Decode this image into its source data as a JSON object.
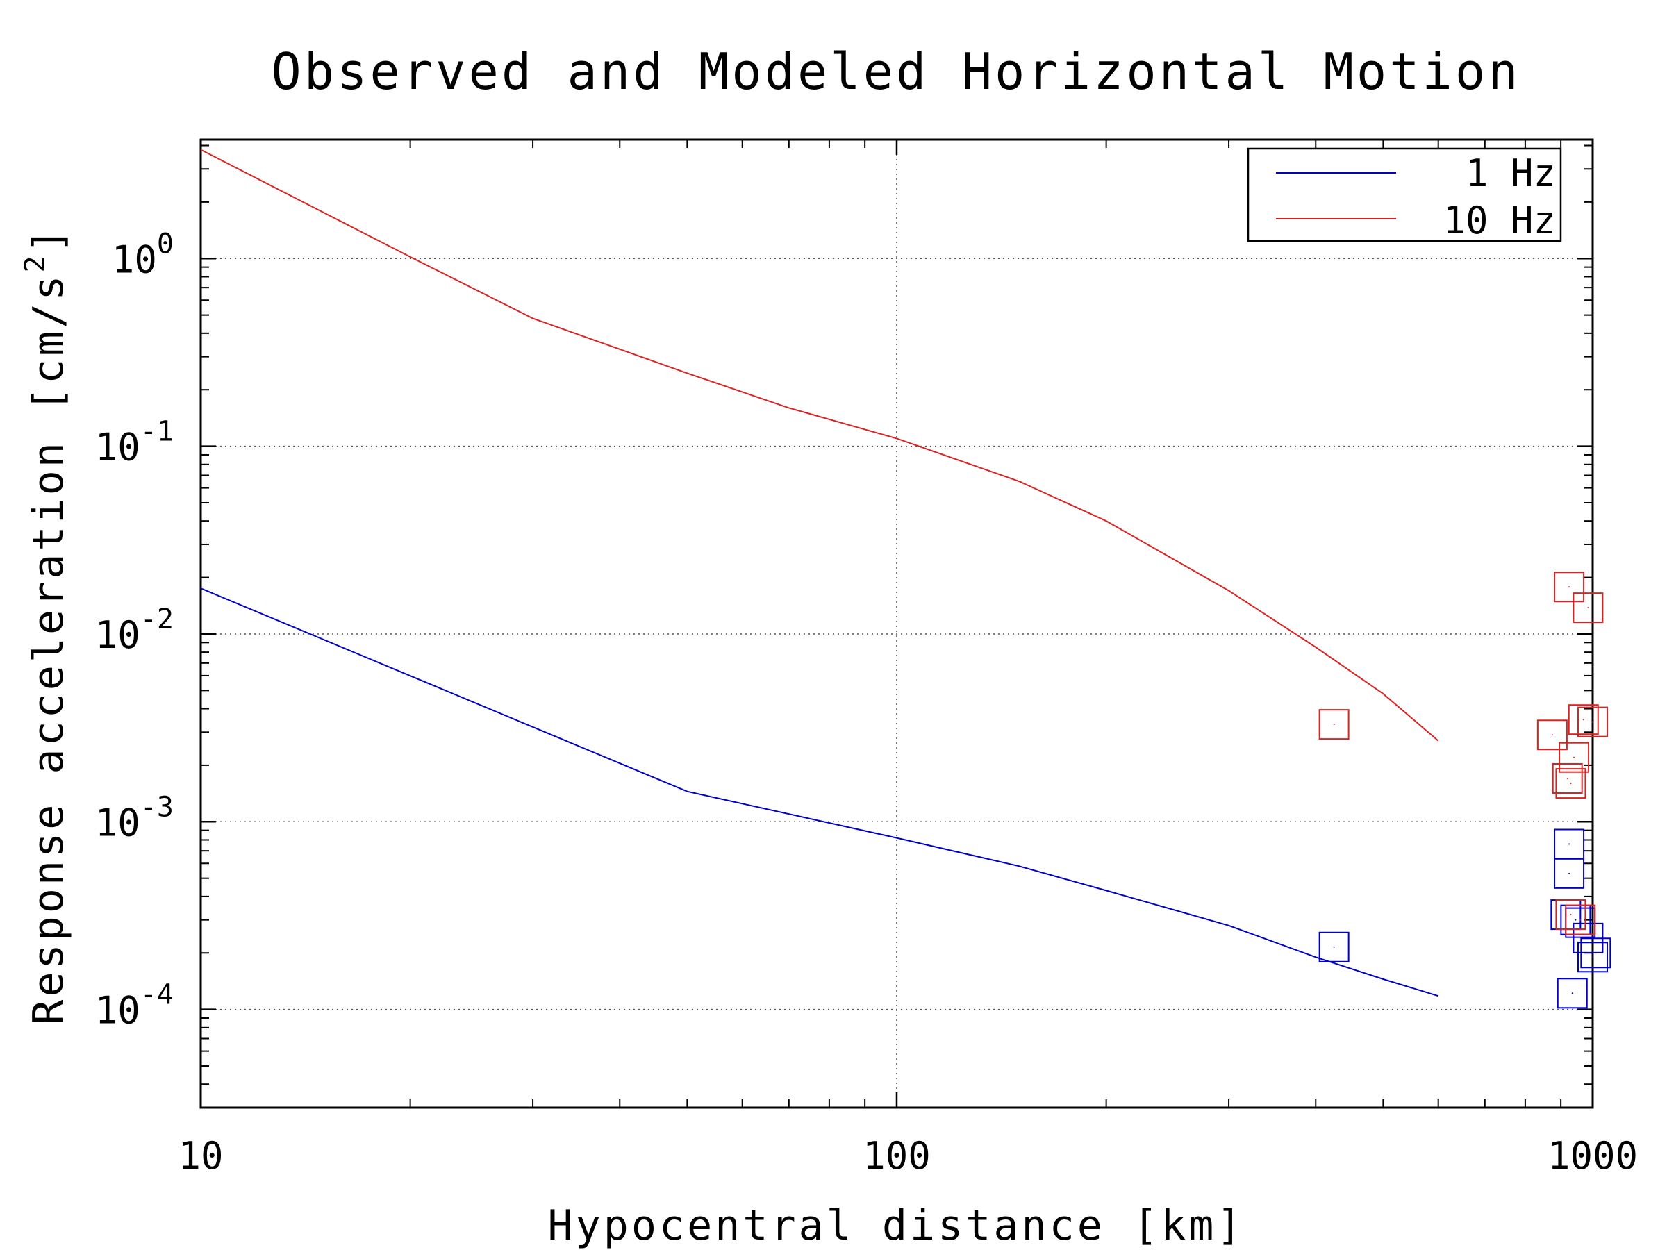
{
  "chart_data": {
    "type": "scatter",
    "title": "Observed and Modeled Horizontal Motion",
    "xlabel": "Hypocentral distance [km]",
    "ylabel": "Response acceleration [cm/s",
    "ylabel_sup": "2",
    "ylabel_end": "]",
    "x_scale": "log",
    "y_scale": "log",
    "xlim": [
      10,
      1000
    ],
    "ylim": [
      3e-05,
      4.3
    ],
    "grid": true,
    "legend_position": "top-right",
    "x_ticks": [
      {
        "value": 10,
        "label": "10"
      },
      {
        "value": 100,
        "label": "100"
      },
      {
        "value": 1000,
        "label": "1000"
      }
    ],
    "y_ticks": [
      {
        "value": 1,
        "base": "10",
        "exp": "0"
      },
      {
        "value": 0.1,
        "base": "10",
        "exp": "-1"
      },
      {
        "value": 0.01,
        "base": "10",
        "exp": "-2"
      },
      {
        "value": 0.001,
        "base": "10",
        "exp": "-3"
      },
      {
        "value": 0.0001,
        "base": "10",
        "exp": "-4"
      }
    ],
    "series": [
      {
        "name": "1 Hz",
        "color": "#0000cc",
        "line": {
          "x": [
            10,
            50,
            100,
            150,
            200,
            300,
            400,
            500,
            600
          ],
          "y": [
            0.0175,
            0.00145,
            0.00082,
            0.00058,
            0.00043,
            0.00028,
            0.00019,
            0.000145,
            0.000118
          ]
        },
        "points": {
          "x": [
            425,
            925,
            925,
            915,
            945,
            960,
            985,
            1010,
            1000,
            935
          ],
          "y": [
            0.000215,
            0.00076,
            0.00053,
            0.00032,
            0.0003,
            0.00029,
            0.00024,
            0.0002,
            0.00019,
            0.000122
          ]
        }
      },
      {
        "name": "10 Hz",
        "color": "#dd2222",
        "line": {
          "x": [
            10,
            20,
            30,
            50,
            70,
            100,
            150,
            200,
            300,
            400,
            500,
            600
          ],
          "y": [
            3.8,
            1.02,
            0.48,
            0.245,
            0.16,
            0.11,
            0.065,
            0.04,
            0.017,
            0.0085,
            0.0048,
            0.0027
          ],
          "x_sample": [
            10,
            50,
            100,
            150,
            200,
            300,
            400,
            500,
            600
          ],
          "y_sample": [
            3.8,
            0.245,
            0.11,
            0.065,
            0.04,
            0.017,
            0.0085,
            0.0048,
            0.0027
          ]
        },
        "points": {
          "x": [
            425,
            925,
            985,
            875,
            970,
            1000,
            940,
            920,
            930,
            930,
            960
          ],
          "y": [
            0.0033,
            0.0178,
            0.0138,
            0.0029,
            0.0035,
            0.0034,
            0.0022,
            0.0017,
            0.0016,
            0.00032,
            0.0003
          ]
        }
      }
    ]
  }
}
